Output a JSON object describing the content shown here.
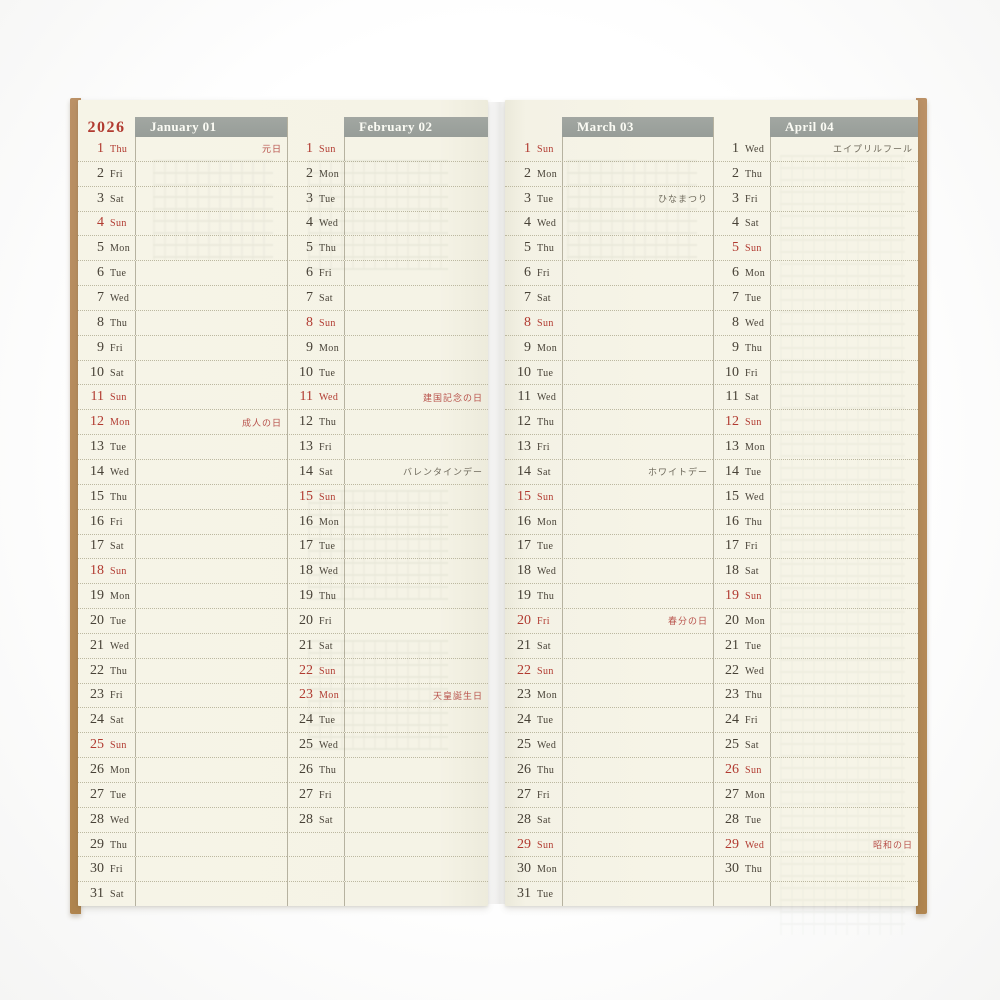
{
  "year": "2026",
  "layout": {
    "rows_per_column": 31
  },
  "colors": {
    "page_cream": "#f5f3e6",
    "banner_gray": "#9ca19c",
    "accent_red": "#b13a30",
    "holiday_note_red": "#b8514a",
    "note_dark": "#6e695b",
    "ink": "#474136",
    "kraft_edge": "#b5895a"
  },
  "months": [
    {
      "short": "jan",
      "title": "January 01",
      "corner": "2026",
      "days": [
        {
          "d": "1",
          "w": "Thu",
          "red": true,
          "note": "元日",
          "nred": true
        },
        {
          "d": "2",
          "w": "Fri"
        },
        {
          "d": "3",
          "w": "Sat"
        },
        {
          "d": "4",
          "w": "Sun",
          "red": true
        },
        {
          "d": "5",
          "w": "Mon"
        },
        {
          "d": "6",
          "w": "Tue"
        },
        {
          "d": "7",
          "w": "Wed"
        },
        {
          "d": "8",
          "w": "Thu"
        },
        {
          "d": "9",
          "w": "Fri"
        },
        {
          "d": "10",
          "w": "Sat"
        },
        {
          "d": "11",
          "w": "Sun",
          "red": true
        },
        {
          "d": "12",
          "w": "Mon",
          "red": true,
          "note": "成人の日",
          "nred": true
        },
        {
          "d": "13",
          "w": "Tue"
        },
        {
          "d": "14",
          "w": "Wed"
        },
        {
          "d": "15",
          "w": "Thu"
        },
        {
          "d": "16",
          "w": "Fri"
        },
        {
          "d": "17",
          "w": "Sat"
        },
        {
          "d": "18",
          "w": "Sun",
          "red": true
        },
        {
          "d": "19",
          "w": "Mon"
        },
        {
          "d": "20",
          "w": "Tue"
        },
        {
          "d": "21",
          "w": "Wed"
        },
        {
          "d": "22",
          "w": "Thu"
        },
        {
          "d": "23",
          "w": "Fri"
        },
        {
          "d": "24",
          "w": "Sat"
        },
        {
          "d": "25",
          "w": "Sun",
          "red": true
        },
        {
          "d": "26",
          "w": "Mon"
        },
        {
          "d": "27",
          "w": "Tue"
        },
        {
          "d": "28",
          "w": "Wed"
        },
        {
          "d": "29",
          "w": "Thu"
        },
        {
          "d": "30",
          "w": "Fri"
        },
        {
          "d": "31",
          "w": "Sat"
        }
      ]
    },
    {
      "short": "feb",
      "title": "February 02",
      "corner": "",
      "days": [
        {
          "d": "1",
          "w": "Sun",
          "red": true
        },
        {
          "d": "2",
          "w": "Mon"
        },
        {
          "d": "3",
          "w": "Tue"
        },
        {
          "d": "4",
          "w": "Wed"
        },
        {
          "d": "5",
          "w": "Thu"
        },
        {
          "d": "6",
          "w": "Fri"
        },
        {
          "d": "7",
          "w": "Sat"
        },
        {
          "d": "8",
          "w": "Sun",
          "red": true
        },
        {
          "d": "9",
          "w": "Mon"
        },
        {
          "d": "10",
          "w": "Tue"
        },
        {
          "d": "11",
          "w": "Wed",
          "red": true,
          "note": "建国記念の日",
          "nred": true
        },
        {
          "d": "12",
          "w": "Thu"
        },
        {
          "d": "13",
          "w": "Fri"
        },
        {
          "d": "14",
          "w": "Sat",
          "note": "バレンタインデー",
          "nred": false
        },
        {
          "d": "15",
          "w": "Sun",
          "red": true
        },
        {
          "d": "16",
          "w": "Mon"
        },
        {
          "d": "17",
          "w": "Tue"
        },
        {
          "d": "18",
          "w": "Wed"
        },
        {
          "d": "19",
          "w": "Thu"
        },
        {
          "d": "20",
          "w": "Fri"
        },
        {
          "d": "21",
          "w": "Sat"
        },
        {
          "d": "22",
          "w": "Sun",
          "red": true
        },
        {
          "d": "23",
          "w": "Mon",
          "red": true,
          "note": "天皇誕生日",
          "nred": true
        },
        {
          "d": "24",
          "w": "Tue"
        },
        {
          "d": "25",
          "w": "Wed"
        },
        {
          "d": "26",
          "w": "Thu"
        },
        {
          "d": "27",
          "w": "Fri"
        },
        {
          "d": "28",
          "w": "Sat"
        }
      ]
    },
    {
      "short": "mar",
      "title": "March 03",
      "corner": "",
      "days": [
        {
          "d": "1",
          "w": "Sun",
          "red": true
        },
        {
          "d": "2",
          "w": "Mon"
        },
        {
          "d": "3",
          "w": "Tue",
          "note": "ひなまつり",
          "nred": false
        },
        {
          "d": "4",
          "w": "Wed"
        },
        {
          "d": "5",
          "w": "Thu"
        },
        {
          "d": "6",
          "w": "Fri"
        },
        {
          "d": "7",
          "w": "Sat"
        },
        {
          "d": "8",
          "w": "Sun",
          "red": true
        },
        {
          "d": "9",
          "w": "Mon"
        },
        {
          "d": "10",
          "w": "Tue"
        },
        {
          "d": "11",
          "w": "Wed"
        },
        {
          "d": "12",
          "w": "Thu"
        },
        {
          "d": "13",
          "w": "Fri"
        },
        {
          "d": "14",
          "w": "Sat",
          "note": "ホワイトデー",
          "nred": false
        },
        {
          "d": "15",
          "w": "Sun",
          "red": true
        },
        {
          "d": "16",
          "w": "Mon"
        },
        {
          "d": "17",
          "w": "Tue"
        },
        {
          "d": "18",
          "w": "Wed"
        },
        {
          "d": "19",
          "w": "Thu"
        },
        {
          "d": "20",
          "w": "Fri",
          "red": true,
          "note": "春分の日",
          "nred": true
        },
        {
          "d": "21",
          "w": "Sat"
        },
        {
          "d": "22",
          "w": "Sun",
          "red": true
        },
        {
          "d": "23",
          "w": "Mon"
        },
        {
          "d": "24",
          "w": "Tue"
        },
        {
          "d": "25",
          "w": "Wed"
        },
        {
          "d": "26",
          "w": "Thu"
        },
        {
          "d": "27",
          "w": "Fri"
        },
        {
          "d": "28",
          "w": "Sat"
        },
        {
          "d": "29",
          "w": "Sun",
          "red": true
        },
        {
          "d": "30",
          "w": "Mon"
        },
        {
          "d": "31",
          "w": "Tue"
        }
      ]
    },
    {
      "short": "apr",
      "title": "April 04",
      "corner": "",
      "days": [
        {
          "d": "1",
          "w": "Wed",
          "note": "エイプリルフール",
          "nred": false
        },
        {
          "d": "2",
          "w": "Thu"
        },
        {
          "d": "3",
          "w": "Fri"
        },
        {
          "d": "4",
          "w": "Sat"
        },
        {
          "d": "5",
          "w": "Sun",
          "red": true
        },
        {
          "d": "6",
          "w": "Mon"
        },
        {
          "d": "7",
          "w": "Tue"
        },
        {
          "d": "8",
          "w": "Wed"
        },
        {
          "d": "9",
          "w": "Thu"
        },
        {
          "d": "10",
          "w": "Fri"
        },
        {
          "d": "11",
          "w": "Sat"
        },
        {
          "d": "12",
          "w": "Sun",
          "red": true
        },
        {
          "d": "13",
          "w": "Mon"
        },
        {
          "d": "14",
          "w": "Tue"
        },
        {
          "d": "15",
          "w": "Wed"
        },
        {
          "d": "16",
          "w": "Thu"
        },
        {
          "d": "17",
          "w": "Fri"
        },
        {
          "d": "18",
          "w": "Sat"
        },
        {
          "d": "19",
          "w": "Sun",
          "red": true
        },
        {
          "d": "20",
          "w": "Mon"
        },
        {
          "d": "21",
          "w": "Tue"
        },
        {
          "d": "22",
          "w": "Wed"
        },
        {
          "d": "23",
          "w": "Thu"
        },
        {
          "d": "24",
          "w": "Fri"
        },
        {
          "d": "25",
          "w": "Sat"
        },
        {
          "d": "26",
          "w": "Sun",
          "red": true
        },
        {
          "d": "27",
          "w": "Mon"
        },
        {
          "d": "28",
          "w": "Tue"
        },
        {
          "d": "29",
          "w": "Wed",
          "red": true,
          "note": "昭和の日",
          "nred": true
        },
        {
          "d": "30",
          "w": "Thu"
        }
      ]
    }
  ]
}
